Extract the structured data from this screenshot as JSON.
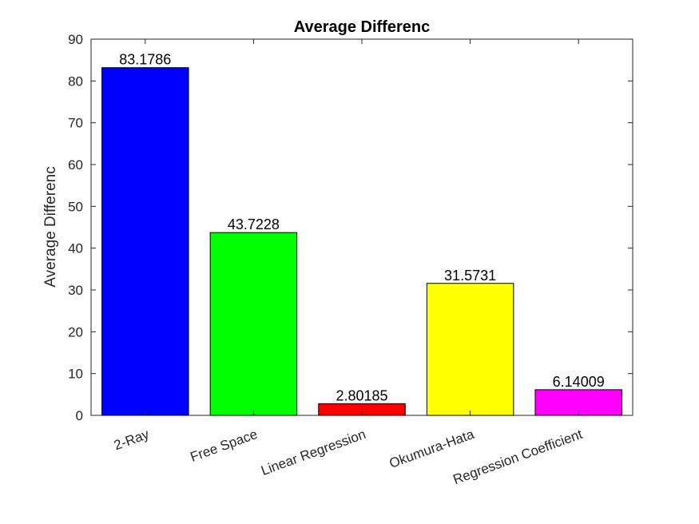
{
  "chart_data": {
    "type": "bar",
    "title": "Average Differenc",
    "xlabel": "",
    "ylabel": "Average Differenc",
    "ylim": [
      0,
      90
    ],
    "yticks": [
      0,
      10,
      20,
      30,
      40,
      50,
      60,
      70,
      80,
      90
    ],
    "categories": [
      "2-Ray",
      "Free Space",
      "Linear Regression",
      "Okumura-Hata",
      "Regression Coefficient"
    ],
    "values": [
      83.1786,
      43.7228,
      2.80185,
      31.5731,
      6.14009
    ],
    "value_labels": [
      "83.1786",
      "43.7228",
      "2.80185",
      "31.5731",
      "6.14009"
    ],
    "colors": [
      "#0000ff",
      "#00ff00",
      "#ff0000",
      "#ffff00",
      "#ff00ff"
    ],
    "grid": false,
    "legend": "none"
  }
}
